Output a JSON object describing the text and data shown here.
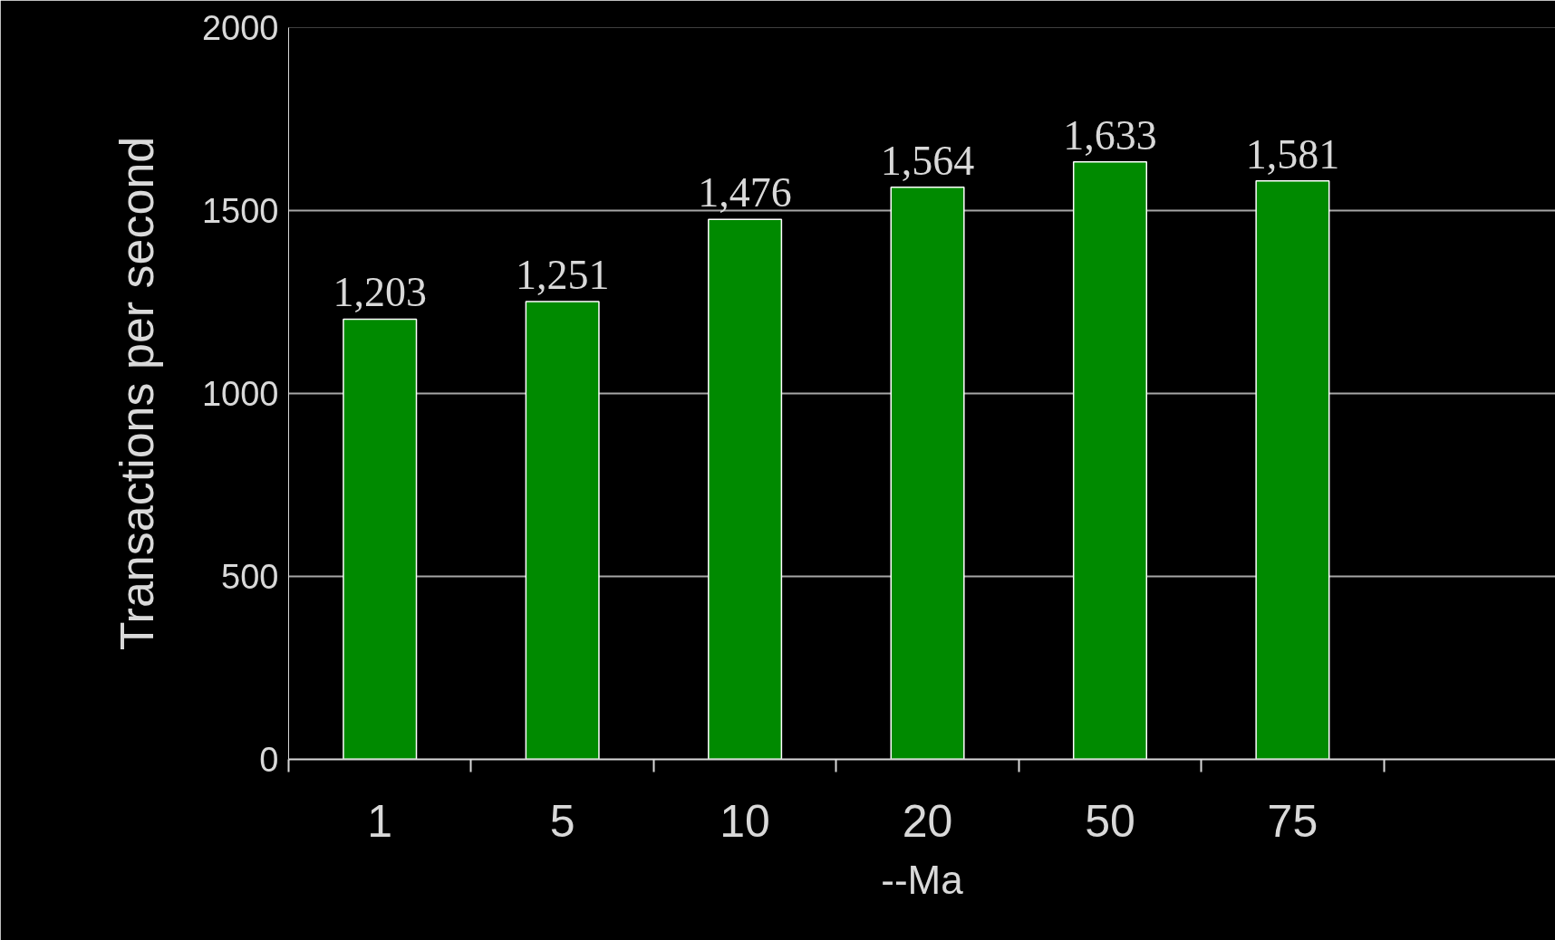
{
  "chart_data": {
    "type": "bar",
    "xlabel": "--Ma",
    "ylabel": "Transactions per second",
    "categories": [
      "1",
      "5",
      "10",
      "20",
      "50",
      "75",
      null
    ],
    "values": [
      1203,
      1251,
      1476,
      1564,
      1633,
      1581,
      null
    ],
    "value_labels": [
      "1,203",
      "1,251",
      "1,476",
      "1,564",
      "1,633",
      "1,581",
      null
    ],
    "color": "#008a00",
    "ylim": [
      0,
      2000
    ],
    "yticks": [
      0,
      500,
      1000,
      1500,
      2000
    ],
    "grid": "y"
  }
}
